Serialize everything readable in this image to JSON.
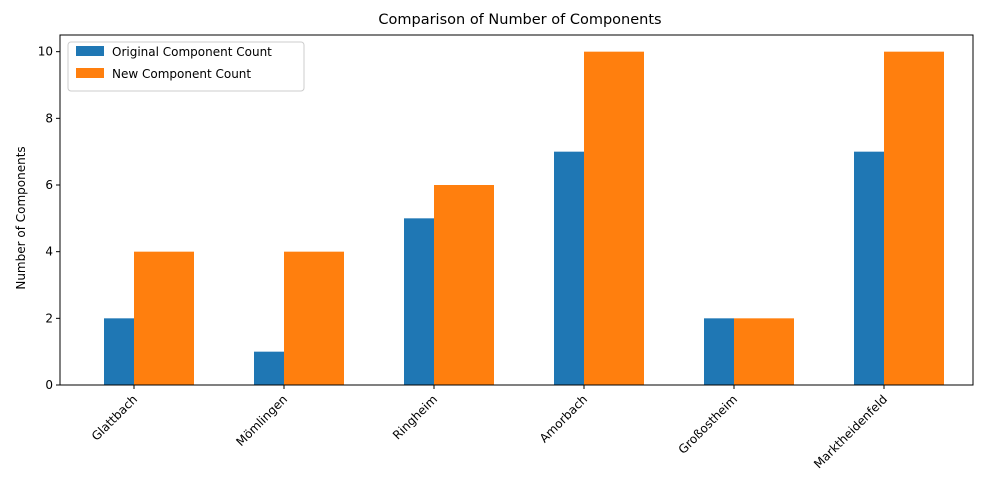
{
  "chart_data": {
    "type": "bar",
    "title": "Comparison of Number of Components",
    "xlabel": "",
    "ylabel": "Number of Components",
    "categories": [
      "Glattbach",
      "Mömlingen",
      "Ringheim",
      "Amorbach",
      "Großostheim",
      "Marktheidenfeld"
    ],
    "series": [
      {
        "name": "Original Component Count",
        "color": "#1f77b4",
        "values": [
          2,
          1,
          5,
          7,
          2,
          7
        ]
      },
      {
        "name": "New Component Count",
        "color": "#ff7f0e",
        "values": [
          4,
          4,
          6,
          10,
          2,
          10
        ]
      }
    ],
    "ylim": [
      0,
      10.5
    ],
    "yticks": [
      0,
      2,
      4,
      6,
      8,
      10
    ],
    "legend": "top-left",
    "grid": false
  }
}
